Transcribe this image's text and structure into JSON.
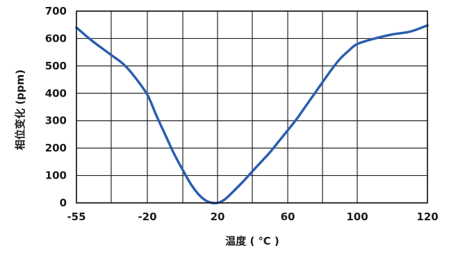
{
  "chart_data": {
    "type": "line",
    "title": "",
    "xlabel": "温度 ( ℃ )",
    "ylabel": "相位变化 (ppm)",
    "xlim": [
      -55,
      120
    ],
    "ylim": [
      0,
      700
    ],
    "x_ticks": [
      -55,
      -20,
      20,
      60,
      100,
      120
    ],
    "x_tick_labels": [
      "-55",
      "-20",
      "20",
      "60",
      "100",
      "120"
    ],
    "y_ticks": [
      0,
      100,
      200,
      300,
      400,
      500,
      600,
      700
    ],
    "y_tick_labels": [
      "0",
      "100",
      "200",
      "300",
      "400",
      "500",
      "600",
      "700"
    ],
    "x_grid_lines": [
      -55,
      -40,
      -20,
      0,
      20,
      40,
      60,
      80,
      100,
      120
    ],
    "grid": true,
    "line_color": "#2a5db0",
    "series": [
      {
        "name": "",
        "x": [
          -55,
          -48,
          -40,
          -33,
          -27,
          -20,
          -15,
          -10,
          -5,
          0,
          5,
          10,
          15,
          20,
          24,
          28,
          35,
          40,
          45,
          50,
          55,
          60,
          65,
          70,
          75,
          80,
          85,
          90,
          95,
          100,
          105,
          110,
          115,
          120
        ],
        "y": [
          640,
          590,
          540,
          505,
          460,
          395,
          320,
          250,
          180,
          120,
          65,
          25,
          3,
          0,
          12,
          35,
          80,
          115,
          150,
          185,
          225,
          265,
          305,
          350,
          395,
          440,
          485,
          525,
          555,
          580,
          600,
          615,
          625,
          648
        ]
      }
    ]
  }
}
